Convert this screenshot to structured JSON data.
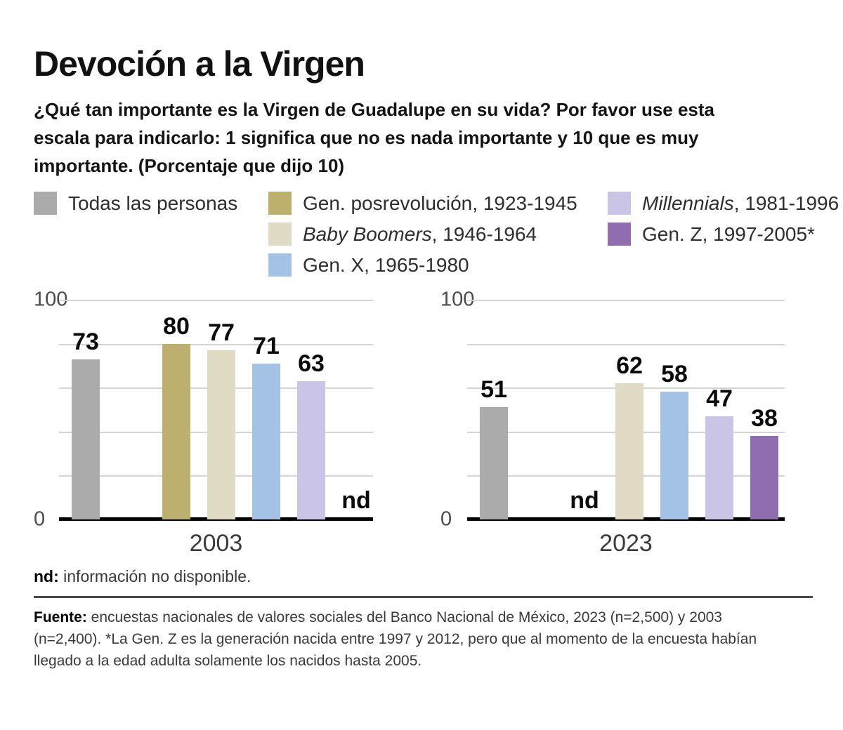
{
  "header": {
    "title": "Devoción a la Virgen",
    "subtitle": "¿Qué tan importante es la Virgen de Guadalupe en su vida? Por favor use esta\nescala para indicarlo: 1 significa que no es nada importante y 10 que es muy\nimportante. (Porcentaje que dijo 10)"
  },
  "palette": {
    "all": "#ababab",
    "posrev": "#bdb06f",
    "boomers": "#dfdbc4",
    "genx": "#a4c2e4",
    "millennials": "#cac4e6",
    "genz": "#8f6dae"
  },
  "legend": {
    "columns": [
      {
        "items": [
          {
            "group": "all",
            "italic": "",
            "label": "Todas las personas"
          }
        ]
      },
      {
        "items": [
          {
            "group": "posrev",
            "italic": "",
            "label": "Gen. posrevolución, 1923-1945"
          },
          {
            "group": "boomers",
            "italic": "Baby Boomers",
            "label": ", 1946-1964"
          },
          {
            "group": "genx",
            "italic": "",
            "label": "Gen. X, 1965-1980"
          }
        ]
      },
      {
        "items": [
          {
            "group": "millennials",
            "italic": "Millennials",
            "label": ", 1981-1996"
          },
          {
            "group": "genz",
            "italic": "",
            "label": "Gen. Z, 1997-2005*"
          }
        ]
      }
    ]
  },
  "nd_marker": "nd",
  "chart_data": [
    {
      "type": "bar",
      "x_label": "2003",
      "ylabel": "",
      "ylim": [
        0,
        100
      ],
      "yticks_labeled": [
        0,
        100
      ],
      "gridlines": [
        20,
        40,
        60,
        80,
        100
      ],
      "ytick_top": "100",
      "ytick_bottom": "0",
      "series": [
        {
          "name": "Todas las personas",
          "group": "all",
          "value": 73
        },
        {
          "name": "Gen. posrevolución, 1923-1945",
          "group": "posrev",
          "value": 80
        },
        {
          "name": "Baby Boomers, 1946-1964",
          "group": "boomers",
          "value": 77
        },
        {
          "name": "Gen. X, 1965-1980",
          "group": "genx",
          "value": 71
        },
        {
          "name": "Millennials, 1981-1996",
          "group": "millennials",
          "value": 63
        },
        {
          "name": "Gen. Z, 1997-2005*",
          "group": "genz",
          "value": null,
          "nd": true
        }
      ]
    },
    {
      "type": "bar",
      "x_label": "2023",
      "ylabel": "",
      "ylim": [
        0,
        100
      ],
      "yticks_labeled": [
        0,
        100
      ],
      "gridlines": [
        20,
        40,
        60,
        80,
        100
      ],
      "ytick_top": "100",
      "ytick_bottom": "0",
      "series": [
        {
          "name": "Todas las personas",
          "group": "all",
          "value": 51
        },
        {
          "name": "Gen. posrevolución, 1923-1945",
          "group": "posrev",
          "value": null,
          "nd": true
        },
        {
          "name": "Baby Boomers, 1946-1964",
          "group": "boomers",
          "value": 62
        },
        {
          "name": "Gen. X, 1965-1980",
          "group": "genx",
          "value": 58
        },
        {
          "name": "Millennials, 1981-1996",
          "group": "millennials",
          "value": 47
        },
        {
          "name": "Gen. Z, 1997-2005*",
          "group": "genz",
          "value": 38
        }
      ]
    }
  ],
  "footer": {
    "nd_label": "nd:",
    "nd_text": "información no disponible.",
    "source_label": "Fuente:",
    "source_text": "encuestas nacionales de valores sociales del Banco Nacional de México, 2023 (n=2,500) y 2003\n(n=2,400). *La Gen. Z es la generación nacida entre 1997 y 2012, pero que al momento de la encuesta habían\nllegado a la edad adulta solamente los nacidos hasta 2005."
  }
}
